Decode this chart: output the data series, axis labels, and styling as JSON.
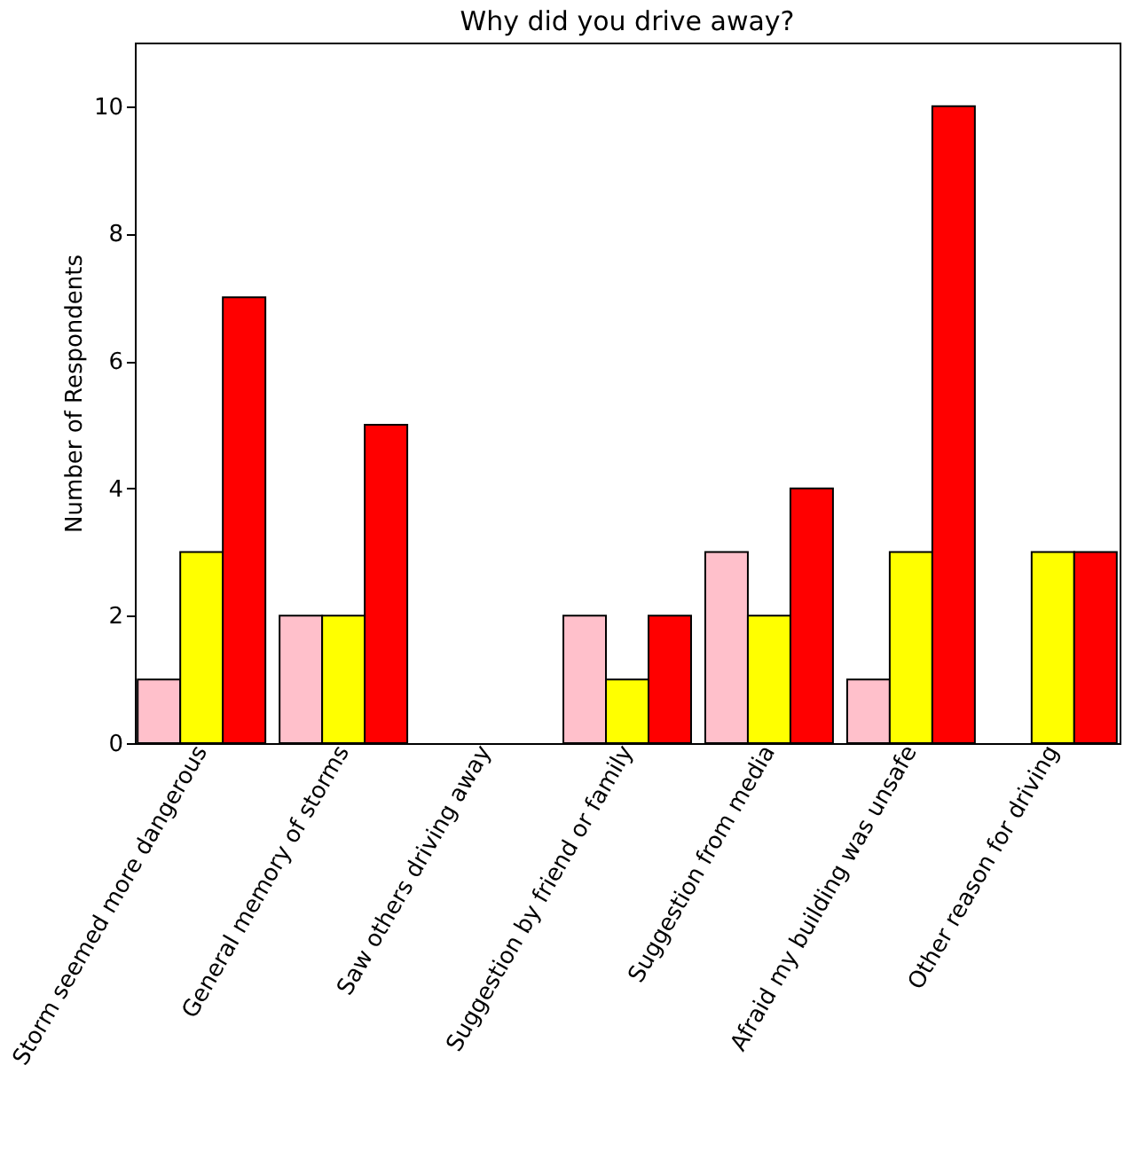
{
  "chart_data": {
    "type": "bar",
    "title": "Why did you drive away?",
    "ylabel": "Number of Respondents",
    "categories": [
      "Storm seemed more dangerous",
      "General memory of storms",
      "Saw others driving away",
      "Suggestion by friend or family",
      "Suggestion from media",
      "Afraid my building was unsafe",
      "Other reason for driving"
    ],
    "series": [
      {
        "color": "#ffc0cb",
        "values": [
          1,
          2,
          0,
          2,
          3,
          1,
          0
        ]
      },
      {
        "color": "#ffff00",
        "values": [
          3,
          2,
          0,
          1,
          2,
          3,
          3
        ]
      },
      {
        "color": "#ff0000",
        "values": [
          7,
          5,
          0,
          2,
          4,
          10,
          3
        ]
      }
    ],
    "ylim": [
      0,
      11
    ],
    "yticks": [
      0,
      2,
      4,
      6,
      8,
      10
    ],
    "grid": false,
    "legend": false
  }
}
